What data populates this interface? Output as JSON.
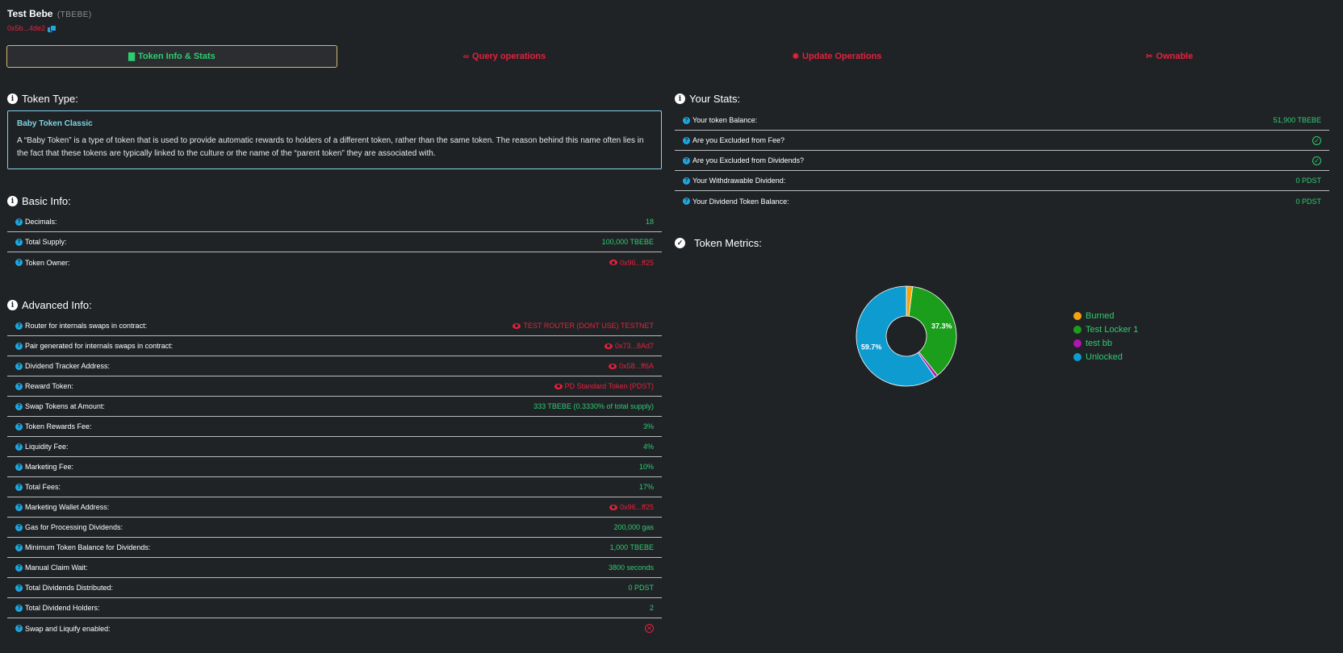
{
  "token": {
    "name": "Test Bebe",
    "symbol": "(TBEBE)",
    "address": "0x5b...4de2"
  },
  "tabs": [
    {
      "label": "Token Info & Stats",
      "icon": "file-icon"
    },
    {
      "label": "Query operations",
      "icon": "binoculars-icon"
    },
    {
      "label": "Update Operations",
      "icon": "gear-icon"
    },
    {
      "label": "Ownable",
      "icon": "tools-icon"
    }
  ],
  "token_type": {
    "heading": "Token Type:",
    "name": "Baby Token Classic",
    "description": "A “Baby Token” is a type of token that is used to provide automatic rewards to holders of a different token, rather than the same token. The reason behind this name often lies in the fact that these tokens are typically linked to the culture or the name of the “parent token” they are associated with."
  },
  "basic_info": {
    "heading": "Basic Info:",
    "rows": [
      {
        "label": "Decimals:",
        "value": "18"
      },
      {
        "label": "Total Supply:",
        "value": "100,000 TBEBE"
      },
      {
        "label": "Token Owner:",
        "value": "0x96...ff25"
      }
    ]
  },
  "advanced_info": {
    "heading": "Advanced Info:",
    "rows": [
      {
        "label": "Router for internals swaps in contract:",
        "value": "TEST ROUTER (DONT USE) TESTNET"
      },
      {
        "label": "Pair generated for internals swaps in contract:",
        "value": "0x73...8Ad7"
      },
      {
        "label": "Dividend Tracker Address:",
        "value": "0x58...ff6A"
      },
      {
        "label": "Reward Token:",
        "value": "PD Standard Token (PDST)"
      },
      {
        "label": "Swap Tokens at Amount:",
        "value": "333 TBEBE (0.3330% of total supply)"
      },
      {
        "label": "Token Rewards Fee:",
        "value": "3%"
      },
      {
        "label": "Liquidity Fee:",
        "value": "4%"
      },
      {
        "label": "Marketing Fee:",
        "value": "10%"
      },
      {
        "label": "Total Fees:",
        "value": "17%"
      },
      {
        "label": "Marketing Wallet Address:",
        "value": "0x96...ff25"
      },
      {
        "label": "Gas for Processing Dividends:",
        "value": "200,000 gas"
      },
      {
        "label": "Minimum Token Balance for Dividends:",
        "value": "1,000 TBEBE"
      },
      {
        "label": "Manual Claim Wait:",
        "value": "3800 seconds"
      },
      {
        "label": "Total Dividends Distributed:",
        "value": "0 PDST"
      },
      {
        "label": "Total Dividend Holders:",
        "value": "2"
      },
      {
        "label": "Swap and Liquify enabled:",
        "value": ""
      }
    ]
  },
  "your_stats": {
    "heading": "Your Stats:",
    "rows": [
      {
        "label": "Your token Balance:",
        "value": "51,900 TBEBE"
      },
      {
        "label": "Are you Excluded from Fee?",
        "value": ""
      },
      {
        "label": "Are you Excluded from Dividends?",
        "value": ""
      },
      {
        "label": "Your Withdrawable Dividend:",
        "value": "0 PDST"
      },
      {
        "label": "Your Dividend Token Balance:",
        "value": "0 PDST"
      }
    ]
  },
  "metrics": {
    "heading": "Token Metrics:"
  },
  "colors": {
    "accent_green": "#2ecc71",
    "accent_red": "#e5213c",
    "info_blue": "#1ea7e0"
  },
  "chart_data": {
    "type": "pie",
    "categories": [
      "Burned",
      "Test Locker 1",
      "test bb",
      "Unlocked"
    ],
    "values": [
      2.0,
      37.3,
      1.0,
      59.7
    ],
    "colors": [
      "#f5a30f",
      "#1b9e1b",
      "#b015b0",
      "#0d9bd0"
    ],
    "data_labels": [
      "",
      "37.3%",
      "",
      "59.7%"
    ],
    "donut": true,
    "legend": "right"
  }
}
